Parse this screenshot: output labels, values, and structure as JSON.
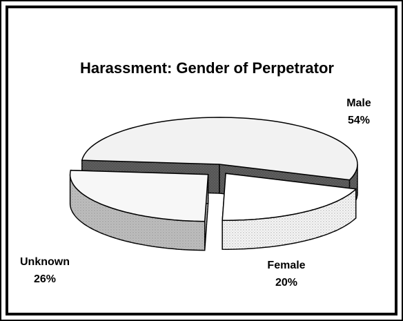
{
  "chart_data": {
    "type": "pie3d",
    "title": "Harassment: Gender of Perpetrator",
    "categories": [
      "Male",
      "Female",
      "Unknown"
    ],
    "values": [
      54,
      20,
      26
    ],
    "value_labels": [
      "54%",
      "20%",
      "26%"
    ],
    "colors": [
      "#f2f2f2",
      "#ffffff",
      "#f7f7f7"
    ],
    "side_colors": [
      "#555555",
      "#f5f5f5",
      "#bdbdbd"
    ]
  }
}
